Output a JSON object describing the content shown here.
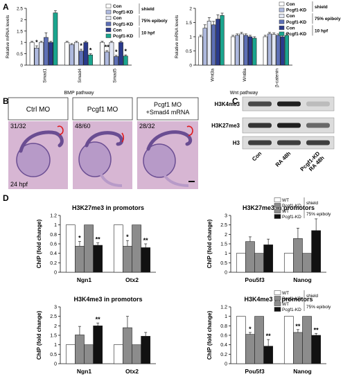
{
  "panel_letters": [
    "A",
    "B",
    "C",
    "D"
  ],
  "colors": {
    "con_shield": "#ffffff",
    "kd_shield": "#aeb9de",
    "con_75": "#e2e7f4",
    "kd_75": "#5d6fb6",
    "con_10": "#2a3a8c",
    "kd_10": "#1aa58e",
    "chip_wt_shield": "#ffffff",
    "chip_kd_shield": "#8c8c8c",
    "chip_wt_75": "#8c8c8c",
    "chip_kd_75": "#111111",
    "embryo": "#c7a2c8",
    "embryo_dark": "#6a4d92",
    "outline_red": "#e0181c"
  },
  "panel_a": {
    "legend": [
      {
        "label": "Con",
        "group": "shield",
        "color_key": "con_shield"
      },
      {
        "label": "Pcgf1-KD",
        "group": "shield",
        "color_key": "kd_shield"
      },
      {
        "label": "Con",
        "group": "75% epiboly",
        "color_key": "con_75"
      },
      {
        "label": "Pcgf1-KD",
        "group": "75% epiboly",
        "color_key": "kd_75"
      },
      {
        "label": "Con",
        "group": "10 hpf",
        "color_key": "con_10"
      },
      {
        "label": "Pcgf1-KD",
        "group": "10 hpf",
        "color_key": "kd_10"
      }
    ],
    "group_labels": [
      "shield",
      "75% epiboly",
      "10 hpf"
    ]
  },
  "panel_b": {
    "labels": [
      "Ctrl MO",
      "Pcgf1 MO",
      "Pcgf1 MO\n+Smad4 mRNA"
    ],
    "counts": [
      "31/32",
      "48/60",
      "28/32"
    ],
    "stage": "24 hpf"
  },
  "panel_c": {
    "rows": [
      "H3K4me3",
      "H3K27me3",
      "H3"
    ],
    "lanes": [
      "Con",
      "RA 48h",
      "Pcgf1-KD\nRA 48h"
    ],
    "band_intensity": [
      [
        0.75,
        0.95,
        0.2
      ],
      [
        0.85,
        0.95,
        0.6
      ],
      [
        0.8,
        0.8,
        0.8
      ]
    ]
  },
  "panel_d_legend": {
    "entries": [
      "WT",
      "Pcgf1-KD",
      "WT",
      "Pcgf1-KD"
    ],
    "groups": [
      "shield",
      "75% epiboly"
    ]
  },
  "chart_data": [
    {
      "type": "bar",
      "id": "A1",
      "ylabel": "Relative mRNA levels",
      "xlabel": "BMP pathway",
      "ylim": [
        0,
        2.5
      ],
      "yticks": [
        0,
        0.5,
        1,
        1.5,
        2,
        2.5
      ],
      "categories": [
        "Smad1",
        "Smad4",
        "Smad5"
      ],
      "series": [
        {
          "name": "Con shield",
          "color_key": "con_shield",
          "values": [
            1.0,
            1.0,
            1.0
          ],
          "err": [
            0.05,
            0.05,
            0.05
          ]
        },
        {
          "name": "Pcgf1-KD shield",
          "color_key": "kd_shield",
          "values": [
            0.75,
            0.9,
            0.58
          ],
          "err": [
            0.1,
            0.05,
            0.06
          ]
        },
        {
          "name": "Con 75% epiboly",
          "color_key": "con_75",
          "values": [
            1.0,
            1.0,
            1.0
          ],
          "err": [
            0.05,
            0.05,
            0.05
          ]
        },
        {
          "name": "Pcgf1-KD 75% epiboly",
          "color_key": "kd_75",
          "values": [
            1.22,
            0.62,
            0.38
          ],
          "err": [
            0.2,
            0.08,
            0.05
          ]
        },
        {
          "name": "Con 10 hpf",
          "color_key": "con_10",
          "values": [
            1.0,
            1.0,
            1.0
          ],
          "err": [
            0.05,
            0.05,
            0.05
          ]
        },
        {
          "name": "Pcgf1-KD 10 hpf",
          "color_key": "kd_10",
          "values": [
            2.3,
            0.45,
            0.4
          ],
          "err": [
            0.1,
            0.05,
            0.05
          ]
        }
      ],
      "annotations": [
        {
          "category": 0,
          "series": 1,
          "text": "*"
        },
        {
          "category": 1,
          "series": 3,
          "text": "*"
        },
        {
          "category": 1,
          "series": 5,
          "text": "*"
        },
        {
          "category": 2,
          "series": 1,
          "text": "**"
        },
        {
          "category": 2,
          "series": 3,
          "text": "*"
        },
        {
          "category": 2,
          "series": 5,
          "text": "*"
        }
      ]
    },
    {
      "type": "bar",
      "id": "A2",
      "ylabel": "Relative mRNA levels",
      "xlabel": "Wnt pathway",
      "ylim": [
        0,
        2.0
      ],
      "yticks": [
        0,
        0.5,
        1.0,
        1.5,
        2.0
      ],
      "categories": [
        "Wnt3a",
        "Wnt8a",
        "β-catenin"
      ],
      "series": [
        {
          "name": "Con shield",
          "color_key": "con_shield",
          "values": [
            1.0,
            1.0,
            1.0
          ],
          "err": [
            0.05,
            0.05,
            0.05
          ]
        },
        {
          "name": "Pcgf1-KD shield",
          "color_key": "kd_shield",
          "values": [
            1.3,
            1.05,
            1.1
          ],
          "err": [
            0.12,
            0.05,
            0.05
          ]
        },
        {
          "name": "Con 75% epiboly",
          "color_key": "con_75",
          "values": [
            1.55,
            1.1,
            1.08
          ],
          "err": [
            0.12,
            0.05,
            0.05
          ]
        },
        {
          "name": "Pcgf1-KD 75% epiboly",
          "color_key": "kd_75",
          "values": [
            1.42,
            1.05,
            1.05
          ],
          "err": [
            0.12,
            0.05,
            0.05
          ]
        },
        {
          "name": "Con 10 hpf",
          "color_key": "con_10",
          "values": [
            1.62,
            1.0,
            1.0
          ],
          "err": [
            0.15,
            0.05,
            0.05
          ]
        },
        {
          "name": "Pcgf1-KD 10 hpf",
          "color_key": "kd_10",
          "values": [
            1.75,
            0.95,
            1.05
          ],
          "err": [
            0.08,
            0.05,
            0.05
          ]
        }
      ],
      "annotations": []
    },
    {
      "type": "bar",
      "id": "D1",
      "title": "H3K27me3 in promotors",
      "ylabel": "ChIP (fold change)",
      "ylim": [
        0,
        1.2
      ],
      "yticks": [
        0,
        0.2,
        0.4,
        0.6,
        0.8,
        1,
        1.2
      ],
      "categories": [
        "Ngn1",
        "Otx2"
      ],
      "series": [
        {
          "name": "WT shield",
          "color_key": "chip_wt_shield",
          "values": [
            1.0,
            1.0
          ],
          "err": [
            0,
            0
          ]
        },
        {
          "name": "Pcgf1-KD shield",
          "color_key": "chip_kd_shield",
          "values": [
            0.55,
            0.55
          ],
          "err": [
            0.1,
            0.12
          ]
        },
        {
          "name": "WT 75% epiboly",
          "color_key": "chip_wt_75",
          "values": [
            1.0,
            1.0
          ],
          "err": [
            0,
            0
          ]
        },
        {
          "name": "Pcgf1-KD 75% epiboly",
          "color_key": "chip_kd_75",
          "values": [
            0.57,
            0.52
          ],
          "err": [
            0.05,
            0.08
          ]
        }
      ],
      "annotations": [
        {
          "category": 0,
          "series": 1,
          "text": "*"
        },
        {
          "category": 0,
          "series": 3,
          "text": "**"
        },
        {
          "category": 1,
          "series": 1,
          "text": "*"
        },
        {
          "category": 1,
          "series": 3,
          "text": "**"
        }
      ]
    },
    {
      "type": "bar",
      "id": "D2",
      "title": "H3K27me3 in promotors",
      "ylabel": "ChIP (fold change)",
      "ylim": [
        0,
        3
      ],
      "yticks": [
        0,
        0.5,
        1,
        1.5,
        2,
        2.5,
        3
      ],
      "categories": [
        "Pou5f3",
        "Nanog"
      ],
      "series": [
        {
          "name": "WT shield",
          "color_key": "chip_wt_shield",
          "values": [
            1.0,
            1.0
          ],
          "err": [
            0,
            0
          ]
        },
        {
          "name": "Pcgf1-KD shield",
          "color_key": "chip_kd_shield",
          "values": [
            1.62,
            1.78
          ],
          "err": [
            0.25,
            0.55
          ]
        },
        {
          "name": "WT 75% epiboly",
          "color_key": "chip_wt_75",
          "values": [
            1.0,
            1.0
          ],
          "err": [
            0,
            0
          ]
        },
        {
          "name": "Pcgf1-KD 75% epiboly",
          "color_key": "chip_kd_75",
          "values": [
            1.45,
            2.2
          ],
          "err": [
            0.3,
            0.62
          ]
        }
      ],
      "annotations": []
    },
    {
      "type": "bar",
      "id": "D3",
      "title": "H3K4me3 in promotors",
      "ylabel": "ChIP (fold change)",
      "ylim": [
        0,
        3
      ],
      "yticks": [
        0,
        0.5,
        1,
        1.5,
        2,
        2.5,
        3
      ],
      "categories": [
        "Ngn1",
        "Otx2"
      ],
      "series": [
        {
          "name": "WT shield",
          "color_key": "chip_wt_shield",
          "values": [
            1.0,
            1.0
          ],
          "err": [
            0,
            0
          ]
        },
        {
          "name": "Pcgf1-KD shield",
          "color_key": "chip_kd_shield",
          "values": [
            1.52,
            1.9
          ],
          "err": [
            0.45,
            0.6
          ]
        },
        {
          "name": "WT 75% epiboly",
          "color_key": "chip_wt_75",
          "values": [
            1.0,
            1.0
          ],
          "err": [
            0,
            0
          ]
        },
        {
          "name": "Pcgf1-KD 75% epiboly",
          "color_key": "chip_kd_75",
          "values": [
            2.0,
            1.45
          ],
          "err": [
            0.15,
            0.2
          ]
        }
      ],
      "annotations": [
        {
          "category": 0,
          "series": 3,
          "text": "**"
        }
      ]
    },
    {
      "type": "bar",
      "id": "D4",
      "title": "H3K4me3 in promotors",
      "ylabel": "ChIP (fold change)",
      "ylim": [
        0,
        1.2
      ],
      "yticks": [
        0,
        0.2,
        0.4,
        0.6,
        0.8,
        1,
        1.2
      ],
      "categories": [
        "Pou5f3",
        "Nanog"
      ],
      "series": [
        {
          "name": "WT shield",
          "color_key": "chip_wt_shield",
          "values": [
            1.0,
            1.0
          ],
          "err": [
            0,
            0
          ]
        },
        {
          "name": "Pcgf1-KD shield",
          "color_key": "chip_kd_shield",
          "values": [
            0.62,
            0.66
          ],
          "err": [
            0.04,
            0.06
          ]
        },
        {
          "name": "WT 75% epiboly",
          "color_key": "chip_wt_75",
          "values": [
            1.0,
            1.0
          ],
          "err": [
            0,
            0
          ]
        },
        {
          "name": "Pcgf1-KD 75% epiboly",
          "color_key": "chip_kd_75",
          "values": [
            0.37,
            0.6
          ],
          "err": [
            0.14,
            0.04
          ]
        }
      ],
      "annotations": [
        {
          "category": 0,
          "series": 1,
          "text": "*"
        },
        {
          "category": 0,
          "series": 3,
          "text": "**"
        },
        {
          "category": 1,
          "series": 1,
          "text": "**"
        },
        {
          "category": 1,
          "series": 3,
          "text": "**"
        }
      ]
    }
  ]
}
